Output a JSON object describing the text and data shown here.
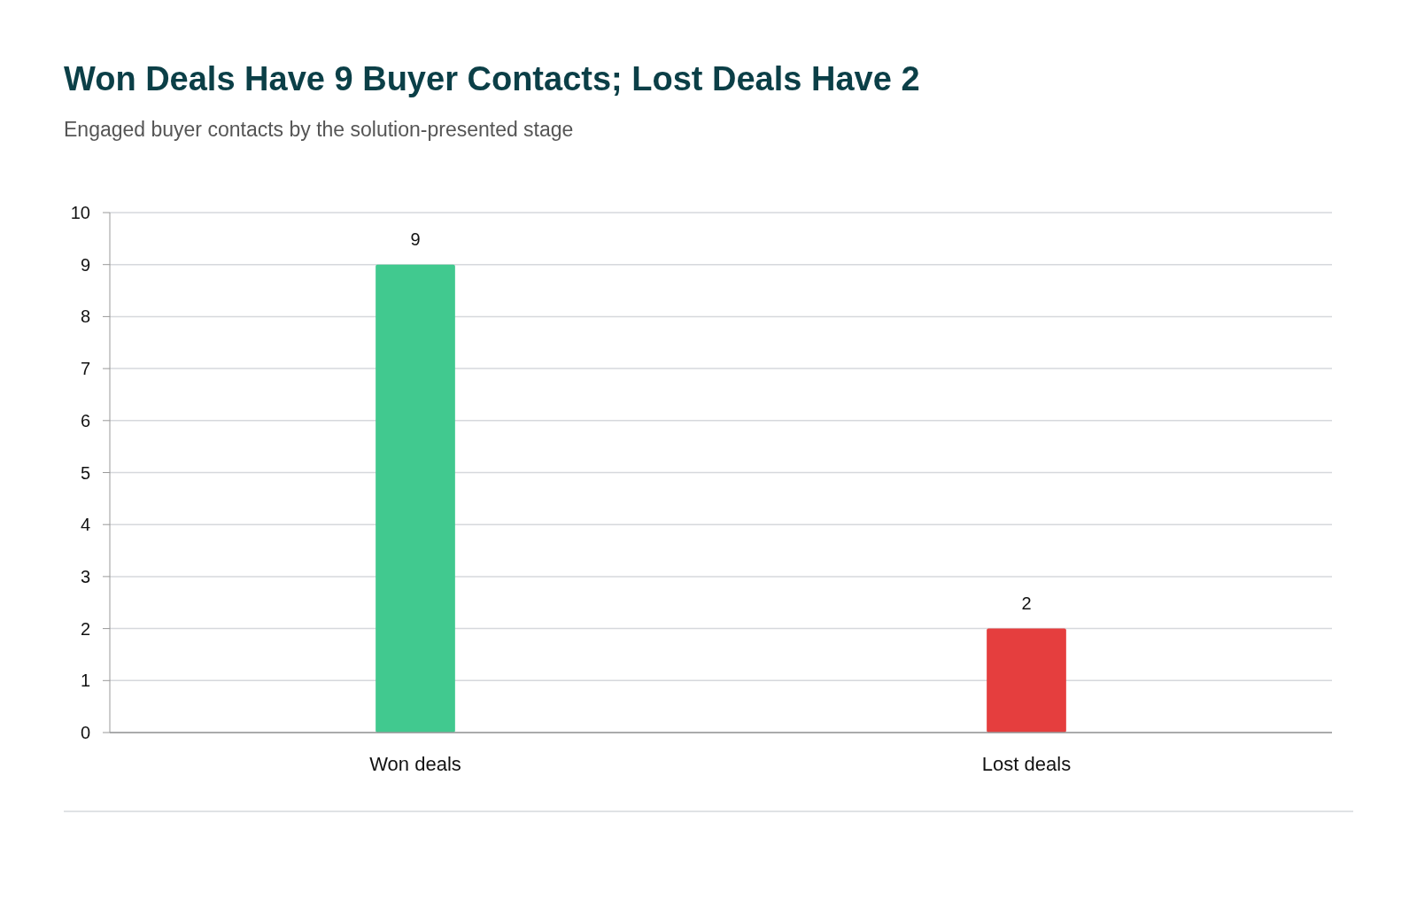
{
  "chart_data": {
    "type": "bar",
    "title": "Won Deals Have 9 Buyer Contacts; Lost Deals Have 2",
    "subtitle": "Engaged buyer contacts by the solution-presented stage",
    "categories": [
      "Won deals",
      "Lost deals"
    ],
    "values": [
      9,
      2
    ],
    "colors": [
      "#41c98f",
      "#e53e3e"
    ],
    "ylim": [
      0,
      10
    ],
    "yticks": [
      0,
      1,
      2,
      3,
      4,
      5,
      6,
      7,
      8,
      9,
      10
    ],
    "grid": "y",
    "data_labels": true
  }
}
